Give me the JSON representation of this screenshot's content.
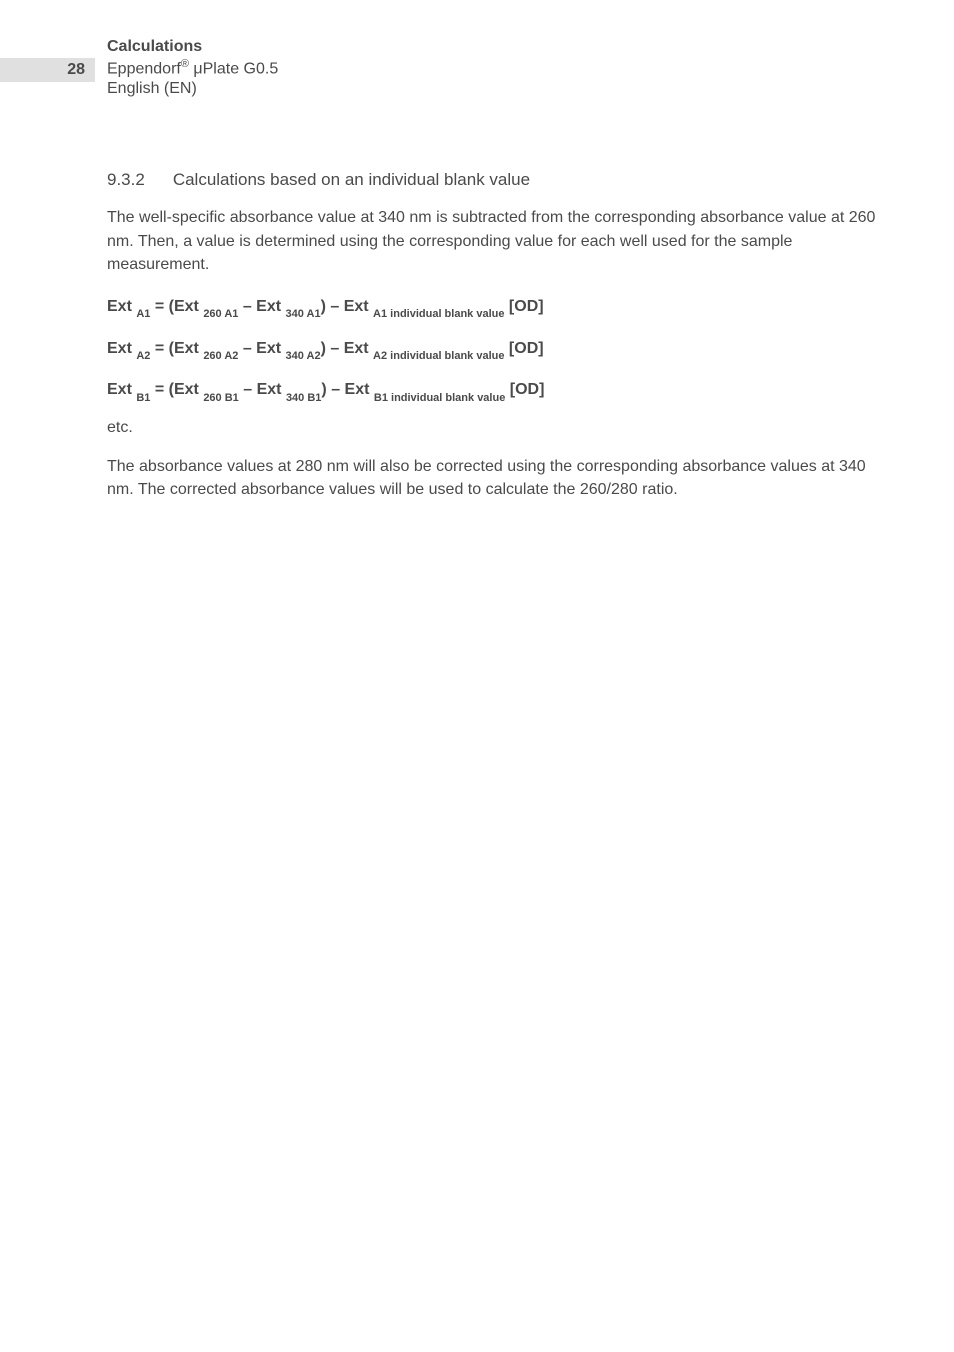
{
  "header": {
    "page_number": "28",
    "title": "Calculations",
    "line2_prefix": "Eppendorf",
    "line2_reg": "®",
    "line2_suffix": " μPlate G0.5",
    "line3": "English (EN)"
  },
  "section": {
    "number": "9.3.2",
    "title": "Calculations based on an individual blank value"
  },
  "para1": "The well-specific absorbance value at 340 nm is subtracted from the corresponding absorbance value at 260 nm. Then, a value is determined using the corresponding value for each well used for the sample measurement.",
  "formulas": [
    {
      "lhs_main": "Ext ",
      "lhs_sub": "A1",
      "term1_main": "(Ext ",
      "term1_sub": "260 A1",
      "term2_main": "Ext ",
      "term2_sub": "340 A1",
      "term3_main": "Ext ",
      "term3_sub": "A1 individual blank value",
      "unit": "[OD]"
    },
    {
      "lhs_main": "Ext ",
      "lhs_sub": "A2",
      "term1_main": "(Ext ",
      "term1_sub": "260 A2",
      "term2_main": "Ext ",
      "term2_sub": "340 A2",
      "term3_main": "Ext ",
      "term3_sub": "A2 individual blank value",
      "unit": "[OD]"
    },
    {
      "lhs_main": "Ext ",
      "lhs_sub": "B1",
      "term1_main": "(Ext ",
      "term1_sub": "260 B1",
      "term2_main": "Ext ",
      "term2_sub": "340 B1",
      "term3_main": "Ext ",
      "term3_sub": "B1 individual blank value",
      "unit": "[OD]"
    }
  ],
  "etc": "etc.",
  "para2": "The absorbance values at 280 nm will also be corrected using the corresponding absorbance values at 340 nm. The corrected absorbance values will be used to calculate the 260/280 ratio.",
  "colors": {
    "text": "#4a4a4a",
    "page_number_bg": "#e0e0e0",
    "background": "#ffffff"
  },
  "typography": {
    "body_fontsize": 16,
    "sub_fontsize": 11,
    "heading_fontsize": 17
  }
}
